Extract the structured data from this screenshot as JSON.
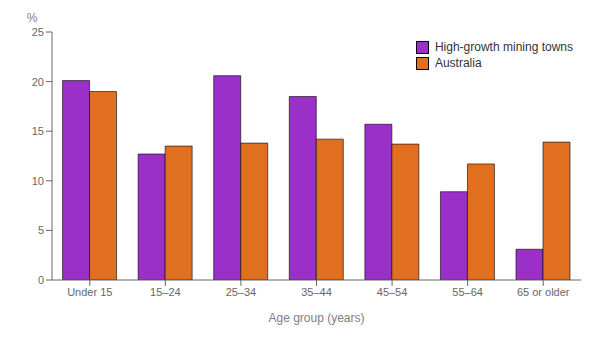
{
  "chart_data": {
    "type": "bar",
    "categories": [
      "Under 15",
      "15–24",
      "25–34",
      "35–44",
      "45–54",
      "55–64",
      "65 or older"
    ],
    "series": [
      {
        "name": "High-growth mining towns",
        "color": "#9B30C8",
        "values": [
          20.1,
          12.7,
          20.6,
          18.5,
          15.7,
          8.9,
          3.1
        ]
      },
      {
        "name": "Australia",
        "color": "#E07020",
        "values": [
          19.0,
          13.5,
          13.8,
          14.2,
          13.7,
          11.7,
          13.9
        ]
      }
    ],
    "xlabel": "Age group (years)",
    "ylabel": "%",
    "ylim": [
      0,
      25
    ],
    "yticks": [
      0,
      5,
      10,
      15,
      20,
      25
    ],
    "legend": "upper right"
  }
}
